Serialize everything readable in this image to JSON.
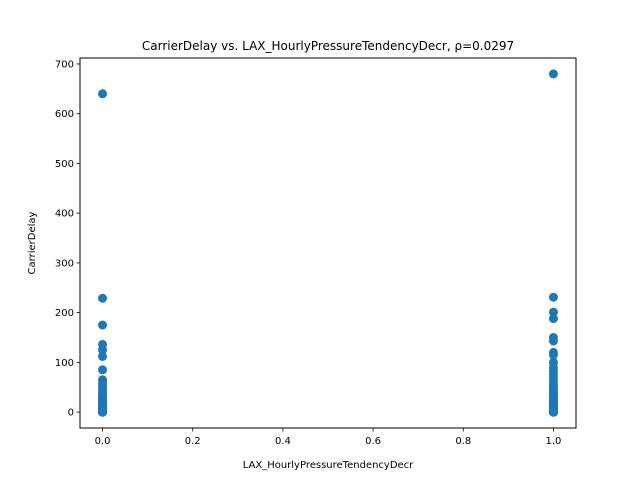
{
  "chart_data": {
    "type": "scatter",
    "title": "CarrierDelay vs. LAX_HourlyPressureTendencyDecr, ρ=0.0297",
    "xlabel": "LAX_HourlyPressureTendencyDecr",
    "ylabel": "CarrierDelay",
    "xlim": [
      -0.05,
      1.05
    ],
    "ylim": [
      -32,
      712
    ],
    "x_ticks": [
      0.0,
      0.2,
      0.4,
      0.6,
      0.8,
      1.0
    ],
    "x_tick_labels": [
      "0.0",
      "0.2",
      "0.4",
      "0.6",
      "0.8",
      "1.0"
    ],
    "y_ticks": [
      0,
      100,
      200,
      300,
      400,
      500,
      600,
      700
    ],
    "y_tick_labels": [
      "0",
      "100",
      "200",
      "300",
      "400",
      "500",
      "600",
      "700"
    ],
    "grid": false,
    "marker_color": "#1f77b4",
    "series": [
      {
        "x": [
          0,
          0,
          0,
          0,
          0,
          0,
          0,
          0,
          0,
          0,
          0,
          0,
          0,
          0,
          0,
          0,
          0,
          0,
          0,
          0,
          0,
          0,
          0,
          0,
          0,
          0,
          0,
          0,
          0,
          0,
          0,
          0,
          0,
          0,
          0,
          0,
          0,
          0,
          0,
          0,
          0,
          1,
          1,
          1,
          1,
          1,
          1,
          1,
          1,
          1,
          1,
          1,
          1,
          1,
          1,
          1,
          1,
          1,
          1,
          1,
          1,
          1,
          1,
          1,
          1,
          1,
          1,
          1,
          1,
          1,
          1,
          1,
          1,
          1,
          1,
          1,
          1,
          1,
          1,
          1,
          1,
          1,
          1,
          1,
          1,
          1,
          1,
          1,
          1,
          1,
          1
        ],
        "y": [
          640,
          229,
          175,
          136,
          125,
          112,
          85,
          65,
          58,
          52,
          45,
          40,
          35,
          30,
          27,
          24,
          22,
          20,
          18,
          16,
          14,
          12,
          10,
          9,
          8,
          7,
          6,
          5,
          4,
          3,
          2,
          1,
          0,
          0,
          0,
          0,
          0,
          0,
          0,
          0,
          0,
          680,
          231,
          201,
          188,
          150,
          143,
          120,
          115,
          100,
          90,
          82,
          75,
          68,
          60,
          55,
          50,
          45,
          40,
          35,
          32,
          28,
          25,
          22,
          20,
          18,
          16,
          14,
          12,
          11,
          10,
          9,
          8,
          7,
          6,
          5,
          4,
          3,
          2,
          1,
          0,
          0,
          0,
          0,
          0,
          0,
          0,
          0,
          0,
          0,
          0
        ]
      }
    ]
  }
}
